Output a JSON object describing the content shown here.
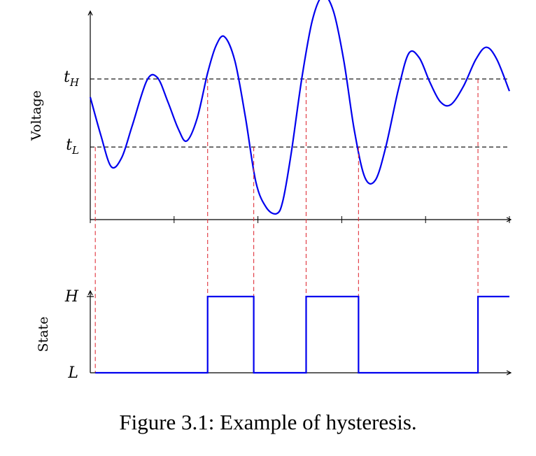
{
  "caption": "Figure 3.1: Example of hysteresis.",
  "chart_data": [
    {
      "type": "line",
      "ylabel": "Voltage",
      "threshold_labels": {
        "high": "t",
        "high_sub": "H",
        "low": "t",
        "low_sub": "L"
      },
      "thresholds": {
        "high": 0.75,
        "low": 0.3
      },
      "ylim": [
        -0.18,
        1.18
      ],
      "xlim": [
        0,
        10
      ],
      "x_ticks": [
        0,
        2,
        4,
        6,
        8,
        10
      ],
      "series": [
        {
          "x": [
            0,
            0.25,
            0.5,
            0.75,
            1.0,
            1.35,
            1.6,
            1.85,
            2.1,
            2.3,
            2.55,
            2.8,
            3.0,
            3.2,
            3.45,
            3.7,
            3.95,
            4.2,
            4.45,
            4.6,
            4.8,
            5.05,
            5.3,
            5.55,
            5.8,
            6.05,
            6.3,
            6.55,
            6.8,
            7.05,
            7.35,
            7.6,
            7.85,
            8.1,
            8.35,
            8.6,
            8.9,
            9.2,
            9.45,
            9.7,
            10.0
          ],
          "values": [
            0.63,
            0.38,
            0.17,
            0.23,
            0.44,
            0.74,
            0.76,
            0.6,
            0.42,
            0.34,
            0.49,
            0.79,
            0.97,
            1.03,
            0.87,
            0.5,
            0.07,
            -0.1,
            -0.14,
            -0.05,
            0.27,
            0.76,
            1.14,
            1.3,
            1.2,
            0.87,
            0.41,
            0.1,
            0.08,
            0.3,
            0.68,
            0.92,
            0.89,
            0.73,
            0.6,
            0.58,
            0.7,
            0.88,
            0.96,
            0.88,
            0.67
          ]
        }
      ],
      "crossings": [
        0.12,
        2.8,
        3.9,
        5.15,
        6.4,
        9.25
      ],
      "line_color": "#0000ee",
      "threshold_color": "#000000",
      "crossing_color": "#e0313a"
    },
    {
      "type": "line",
      "ylabel": "State",
      "tick_labels": [
        "H",
        "L"
      ],
      "xlim": [
        0,
        10
      ],
      "steps": [
        {
          "x0": 0.12,
          "x1": 2.8,
          "state": "L"
        },
        {
          "x0": 2.8,
          "x1": 3.9,
          "state": "H"
        },
        {
          "x0": 3.9,
          "x1": 5.15,
          "state": "L"
        },
        {
          "x0": 5.15,
          "x1": 6.4,
          "state": "H"
        },
        {
          "x0": 6.4,
          "x1": 9.25,
          "state": "L"
        },
        {
          "x0": 9.25,
          "x1": 10.0,
          "state": "H"
        }
      ],
      "line_color": "#0000ee"
    }
  ]
}
